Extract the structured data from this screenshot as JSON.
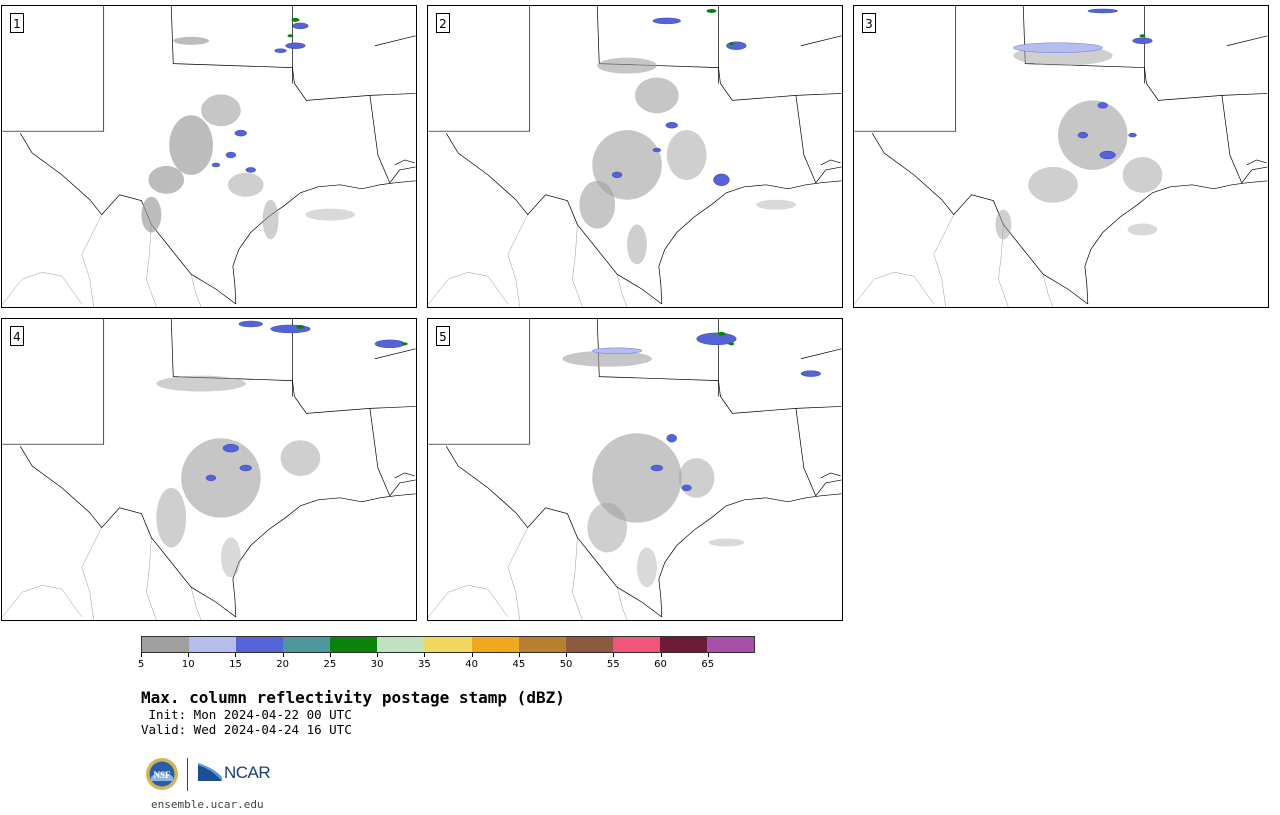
{
  "panels": [
    {
      "label": "1"
    },
    {
      "label": "2"
    },
    {
      "label": "3"
    },
    {
      "label": "4"
    },
    {
      "label": "5"
    }
  ],
  "colorbar": {
    "colors": [
      "#a0a0a0",
      "#b4bdeb",
      "#5563d8",
      "#4e979e",
      "#0a830a",
      "#bfe2c1",
      "#f0d860",
      "#f0a81c",
      "#b97f31",
      "#8c5a3e",
      "#f0557a",
      "#6e1a38",
      "#a94fa8"
    ],
    "tick_labels": [
      "5",
      "10",
      "15",
      "20",
      "25",
      "30",
      "35",
      "40",
      "45",
      "50",
      "55",
      "60",
      "65"
    ]
  },
  "title": "Max. column reflectivity postage stamp (dBZ)",
  "init": " Init: Mon 2024-04-22 00 UTC",
  "valid": "Valid: Wed 2024-04-24 16 UTC",
  "logos": {
    "nsf_text": "NSF",
    "ncar_text": "NCAR"
  },
  "website": "ensemble.ucar.edu"
}
